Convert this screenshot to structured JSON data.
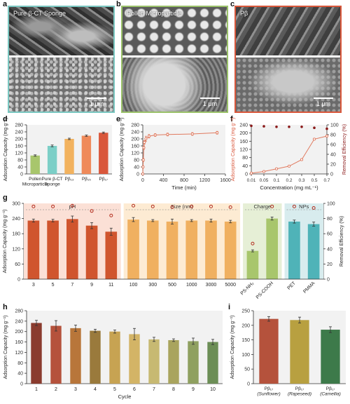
{
  "panels": {
    "a": {
      "letter": "a",
      "caption": "Pure β-CT Sponge",
      "scale": "1 μm",
      "border": "#7ac7c1"
    },
    "b": {
      "letter": "b",
      "caption": "Pollen Microparticle",
      "scale": "1 μm",
      "border": "#9bc26a"
    },
    "c": {
      "letter": "c",
      "caption": "Pβ",
      "scale": "1 μm",
      "border": "#d9573b"
    },
    "d": {
      "letter": "d"
    },
    "e": {
      "letter": "e"
    },
    "f": {
      "letter": "f"
    },
    "g": {
      "letter": "g"
    },
    "h": {
      "letter": "h"
    },
    "i": {
      "letter": "i"
    }
  },
  "chart_data": [
    {
      "id": "d",
      "type": "bar",
      "categories": [
        "Pollen Microparticle",
        "Pure β-CT Sponge",
        "Pβ13",
        "Pβ15",
        "Pβ17"
      ],
      "category_lines": [
        [
          "Pollen",
          "Microparticle"
        ],
        [
          "Pure β-CT",
          "Sponge"
        ],
        [
          "Pβ₁₃"
        ],
        [
          "Pβ₁₅"
        ],
        [
          "Pβ₁₇"
        ]
      ],
      "values": [
        105,
        160,
        200,
        218,
        235
      ],
      "errors": [
        4,
        5,
        4,
        4,
        4
      ],
      "colors": [
        "#a8c66c",
        "#7ccfc7",
        "#f2b25e",
        "#ef8a5a",
        "#d9573b"
      ],
      "ylabel": "Adsorption Capacity (mg g⁻¹)",
      "ylim": [
        0,
        280
      ],
      "yticks": [
        0,
        40,
        80,
        120,
        160,
        200,
        240,
        280
      ]
    },
    {
      "id": "e",
      "type": "line",
      "x": [
        0,
        5,
        10,
        20,
        30,
        60,
        120,
        240,
        480,
        960,
        1440
      ],
      "y": [
        0,
        40,
        80,
        150,
        180,
        200,
        215,
        222,
        225,
        228,
        235
      ],
      "errors": [
        0,
        5,
        8,
        10,
        10,
        15,
        10,
        8,
        8,
        8,
        8
      ],
      "color": "#e07a5f",
      "xlabel": "Time (min)",
      "ylabel": "Adsorption Capacity (mg g⁻¹)",
      "xlim": [
        0,
        1600
      ],
      "ylim": [
        0,
        280
      ],
      "xticks": [
        0,
        400,
        800,
        1200,
        1600
      ],
      "yticks": [
        0,
        40,
        80,
        120,
        160,
        200,
        240,
        280
      ]
    },
    {
      "id": "f",
      "type": "line",
      "categories": [
        "0.01",
        "0.05",
        "0.1",
        "0.2",
        "0.3",
        "0.5",
        "0.7"
      ],
      "series": [
        {
          "axis": "left",
          "values": [
            4,
            12,
            25,
            38,
            70,
            170,
            185
          ],
          "errors": [
            1,
            1,
            1,
            2,
            2,
            3,
            5
          ],
          "color": "#e07a5f"
        },
        {
          "axis": "right",
          "values": [
            98,
            97,
            96,
            96,
            96,
            94,
            92
          ],
          "errors": [
            0.5,
            0.5,
            0.5,
            0.5,
            0.5,
            1,
            1
          ],
          "color": "#8b1a1a"
        }
      ],
      "xlabel": "Concentration (mg mL⁻¹)",
      "ylabel": "Adsorption Capacity (mg g⁻¹)",
      "ylim": [
        0,
        240
      ],
      "yticks": [
        0,
        40,
        80,
        120,
        160,
        200,
        240
      ],
      "y2label": "Removal Efficiency (%)",
      "y2lim": [
        0,
        100
      ],
      "y2ticks": [
        0,
        20,
        40,
        60,
        80,
        100
      ]
    },
    {
      "id": "g",
      "type": "bar",
      "groups": [
        {
          "label": "pH",
          "categories": [
            "3",
            "5",
            "7",
            "9",
            "11"
          ],
          "values": [
            232,
            232,
            238,
            212,
            188
          ],
          "errors": [
            6,
            5,
            12,
            12,
            14
          ],
          "efficiency": [
            96,
            96,
            97,
            90,
            84
          ],
          "bar": "#d0552e",
          "bg": "#fbe0d6"
        },
        {
          "label": "Size (nm)",
          "categories": [
            "100",
            "300",
            "500",
            "1000",
            "3000",
            "5000"
          ],
          "values": [
            236,
            232,
            228,
            232,
            232,
            228
          ],
          "errors": [
            8,
            4,
            10,
            4,
            6,
            5
          ],
          "efficiency": [
            97,
            96,
            95,
            96,
            96,
            95
          ],
          "bar": "#f0b060",
          "bg": "#fdebd3"
        },
        {
          "label": "Charge",
          "categories": [
            "PS-NH₂",
            "PS-COOH"
          ],
          "values": [
            112,
            240
          ],
          "errors": [
            4,
            6
          ],
          "efficiency": [
            47,
            96
          ],
          "bar": "#a8c66c",
          "bg": "#e6efd6"
        },
        {
          "label": "NPs",
          "categories": [
            "PET",
            "PMMA"
          ],
          "values": [
            228,
            218
          ],
          "errors": [
            6,
            8
          ],
          "efficiency": [
            96,
            94
          ],
          "bar": "#4fb3b8",
          "bg": "#d8ecee"
        }
      ],
      "ylabel": "Adsorption Capacity (mg g⁻¹)",
      "ylim": [
        0,
        300
      ],
      "yticks": [
        0,
        60,
        120,
        180,
        240,
        300
      ],
      "y2label": "Removal Efficiency (%)",
      "y2lim": [
        0,
        100
      ],
      "y2ticks": [
        0,
        20,
        40,
        60,
        80,
        100
      ]
    },
    {
      "id": "h",
      "type": "bar",
      "categories": [
        "1",
        "2",
        "3",
        "4",
        "5",
        "6",
        "7",
        "8",
        "9",
        "10"
      ],
      "values": [
        233,
        222,
        213,
        203,
        200,
        190,
        170,
        167,
        163,
        160
      ],
      "errors": [
        10,
        20,
        12,
        6,
        6,
        22,
        8,
        5,
        12,
        10
      ],
      "colors": [
        "#8a3b2e",
        "#b5523c",
        "#b8763a",
        "#9a7a3c",
        "#c7a352",
        "#d3b466",
        "#c7b972",
        "#a9a45e",
        "#8fa060",
        "#6c8e56"
      ],
      "xlabel": "Cycle",
      "ylabel": "Adsorption Capacity (mg g⁻¹)",
      "ylim": [
        0,
        280
      ],
      "yticks": [
        0,
        40,
        80,
        120,
        160,
        200,
        240,
        280
      ]
    },
    {
      "id": "i",
      "type": "bar",
      "categories": [
        "Pβ17 (Sunflower)",
        "Pβ17 (Rapeseed)",
        "Pβ17 (Camellia)"
      ],
      "category_lines": [
        [
          "Pβ₁₇",
          "(Sunflower)"
        ],
        [
          "Pβ₁₇",
          "(Rapeseed)"
        ],
        [
          "Pβ₁₇",
          "(Camellia)"
        ]
      ],
      "values": [
        222,
        218,
        185
      ],
      "errors": [
        8,
        10,
        10
      ],
      "colors": [
        "#b5523c",
        "#b8a040",
        "#3d7a4a"
      ],
      "ylabel": "Adsorption Capacity (mg g⁻¹)",
      "ylim": [
        0,
        250
      ],
      "yticks": [
        0,
        50,
        100,
        150,
        200,
        250
      ]
    }
  ]
}
